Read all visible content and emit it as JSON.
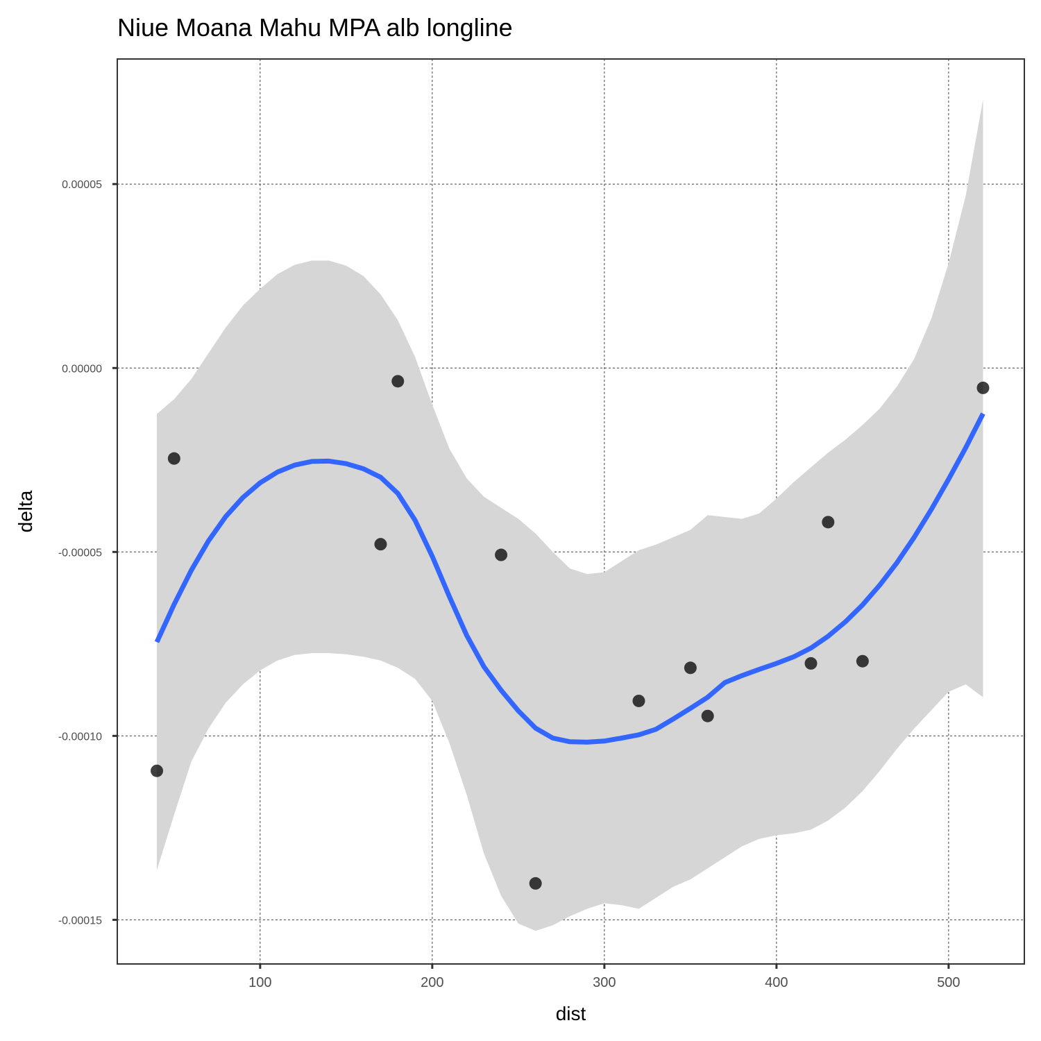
{
  "chart_data": {
    "type": "scatter",
    "title": "Niue Moana Mahu MPA alb longline",
    "xlabel": "dist",
    "ylabel": "delta",
    "xlim": [
      17,
      544
    ],
    "ylim": [
      -0.000162,
      8.4e-05
    ],
    "x_ticks": [
      100,
      200,
      300,
      400,
      500
    ],
    "x_tick_labels": [
      "100",
      "200",
      "300",
      "400",
      "500"
    ],
    "y_ticks": [
      5e-05,
      0,
      -5e-05,
      -0.0001,
      -0.00015
    ],
    "y_tick_labels": [
      "0.00005",
      "0.00000",
      "-0.00005",
      "-0.00010",
      "-0.00015"
    ],
    "grid": true,
    "points": {
      "x": [
        40,
        50,
        170,
        180,
        240,
        260,
        320,
        350,
        360,
        420,
        430,
        450,
        520
      ],
      "y": [
        -0.0001095,
        -2.46e-05,
        -4.79e-05,
        -3.6e-06,
        -5.08e-05,
        -0.0001401,
        -9.05e-05,
        -8.15e-05,
        -9.46e-05,
        -8.03e-05,
        -4.19e-05,
        -7.97e-05,
        -5.4e-06
      ],
      "color": "#000000"
    },
    "smooth": {
      "method": "loess",
      "color": "#3366ff",
      "band_color": "#d6d6d6",
      "x": [
        40,
        50,
        60,
        70,
        80,
        90,
        100,
        110,
        120,
        130,
        140,
        150,
        160,
        170,
        180,
        190,
        200,
        210,
        220,
        230,
        240,
        250,
        260,
        270,
        280,
        290,
        300,
        310,
        320,
        330,
        340,
        350,
        360,
        370,
        380,
        390,
        400,
        410,
        420,
        430,
        440,
        450,
        460,
        470,
        480,
        490,
        500,
        510,
        520
      ],
      "y": [
        -7.45e-05,
        -6.43e-05,
        -5.5e-05,
        -4.7e-05,
        -4.04e-05,
        -3.52e-05,
        -3.12e-05,
        -2.83e-05,
        -2.64e-05,
        -2.54e-05,
        -2.53e-05,
        -2.6e-05,
        -2.74e-05,
        -2.97e-05,
        -3.41e-05,
        -4.14e-05,
        -5.12e-05,
        -6.22e-05,
        -7.27e-05,
        -8.12e-05,
        -8.76e-05,
        -9.32e-05,
        -9.79e-05,
        -0.0001006,
        -0.0001016,
        -0.0001017,
        -0.0001014,
        -0.0001006,
        -9.97e-05,
        -9.82e-05,
        -9.54e-05,
        -9.25e-05,
        -8.95e-05,
        -8.55e-05,
        -8.36e-05,
        -8.19e-05,
        -8.03e-05,
        -7.85e-05,
        -7.61e-05,
        -7.29e-05,
        -6.9e-05,
        -6.44e-05,
        -5.9e-05,
        -5.29e-05,
        -4.6e-05,
        -3.84e-05,
        -3.02e-05,
        -2.16e-05,
        -1.24e-05
      ],
      "upper": [
        -1.25e-05,
        -8.5e-06,
        -3e-06,
        4e-06,
        1.1e-05,
        1.7e-05,
        2.15e-05,
        2.55e-05,
        2.8e-05,
        2.92e-05,
        2.92e-05,
        2.78e-05,
        2.5e-05,
        2e-05,
        1.3e-05,
        3e-06,
        -1e-05,
        -2.2e-05,
        -3e-05,
        -3.5e-05,
        -3.8e-05,
        -4.1e-05,
        -4.5e-05,
        -5e-05,
        -5.45e-05,
        -5.6e-05,
        -5.55e-05,
        -5.25e-05,
        -4.95e-05,
        -4.8e-05,
        -4.6e-05,
        -4.4e-05,
        -4e-05,
        -4.05e-05,
        -4.1e-05,
        -3.95e-05,
        -3.55e-05,
        -3.1e-05,
        -2.7e-05,
        -2.3e-05,
        -1.95e-05,
        -1.55e-05,
        -1.1e-05,
        -5e-06,
        2.5e-06,
        1.35e-05,
        2.85e-05,
        4.7e-05,
        7.3e-05
      ],
      "lower": [
        -0.0001365,
        -0.0001215,
        -0.000107,
        -9.8e-05,
        -9.1e-05,
        -8.6e-05,
        -8.22e-05,
        -7.95e-05,
        -7.8e-05,
        -7.75e-05,
        -7.75e-05,
        -7.78e-05,
        -7.85e-05,
        -7.95e-05,
        -8.15e-05,
        -8.45e-05,
        -9.05e-05,
        -0.000102,
        -0.000116,
        -0.000132,
        -0.0001435,
        -0.000151,
        -0.000153,
        -0.0001515,
        -0.000149,
        -0.000147,
        -0.0001455,
        -0.000146,
        -0.000147,
        -0.000144,
        -0.000141,
        -0.000139,
        -0.000136,
        -0.000133,
        -0.00013,
        -0.000128,
        -0.000127,
        -0.0001265,
        -0.0001255,
        -0.000123,
        -0.0001195,
        -0.000115,
        -0.0001095,
        -0.0001035,
        -9.8e-05,
        -9.3e-05,
        -8.8e-05,
        -8.6e-05,
        -8.95e-05
      ]
    }
  }
}
